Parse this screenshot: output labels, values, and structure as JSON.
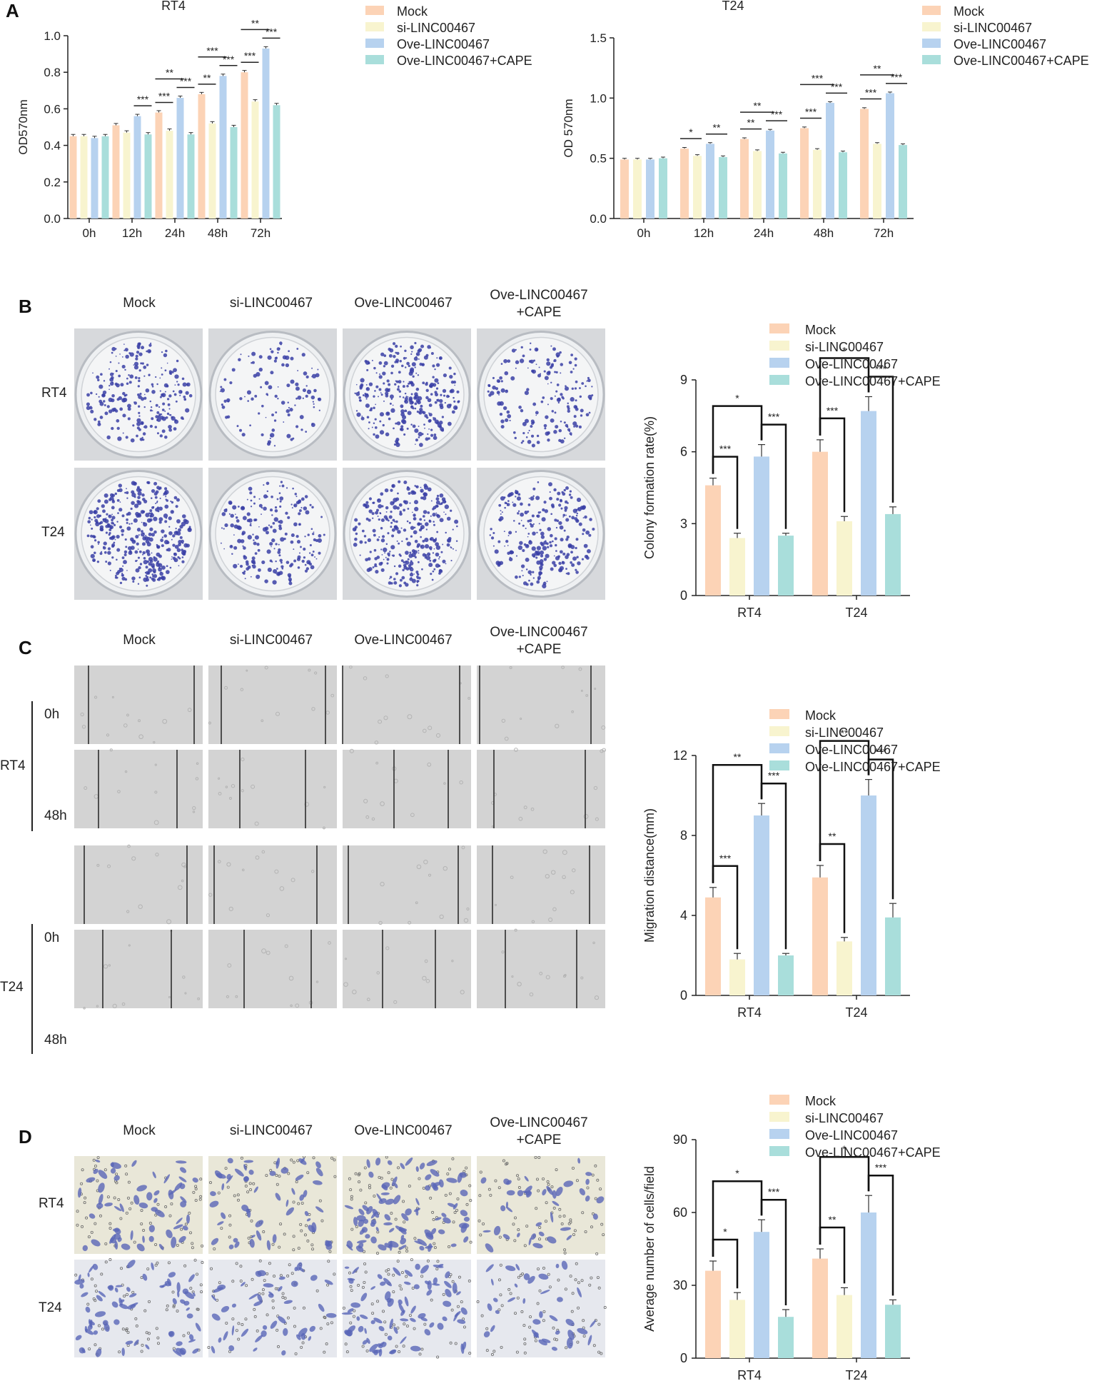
{
  "panels": {
    "a": {
      "letter": "A"
    },
    "b": {
      "letter": "B",
      "col_headers": [
        "Mock",
        "si-LINC00467",
        "Ove-LINC00467",
        "Ove-LINC00467\n+CAPE"
      ],
      "row_labels": [
        "RT4",
        "T24"
      ],
      "description": "Colony formation dishes stained with crystal violet"
    },
    "c": {
      "letter": "C",
      "col_headers": [
        "Mock",
        "si-LINC00467",
        "Ove-LINC00467",
        "Ove-LINC00467\n+CAPE"
      ],
      "row_groups": [
        {
          "label": "RT4",
          "times": [
            "0h",
            "48h"
          ]
        },
        {
          "label": "T24",
          "times": [
            "0h",
            "48h"
          ]
        }
      ],
      "description": "Wound healing micrographs"
    },
    "d": {
      "letter": "D",
      "col_headers": [
        "Mock",
        "si-LINC00467",
        "Ove-LINC00467",
        "Ove-LINC00467\n+CAPE"
      ],
      "row_labels": [
        "RT4",
        "T24"
      ],
      "description": "Transwell migration micrographs"
    }
  },
  "colors": {
    "Mock": "#fcd3b6",
    "si-LINC00467": "#f8f4cf",
    "Ove-LINC00467": "#b7d2ef",
    "Ove-LINC00467+CAPE": "#a9dedb",
    "colony": "#3a3fa6",
    "cells": "#5a66b8"
  },
  "chart_data": [
    {
      "id": "A_RT4",
      "type": "bar",
      "title": "RT4",
      "ylabel": "OD570nm",
      "xlabel": "",
      "categories": [
        "0h",
        "12h",
        "24h",
        "48h",
        "72h"
      ],
      "ylim": [
        0,
        1.0
      ],
      "yticks": [
        "0.0",
        "0.2",
        "0.4",
        "0.6",
        "0.8",
        "1.0"
      ],
      "series": [
        {
          "name": "Mock",
          "values": [
            0.45,
            0.51,
            0.58,
            0.68,
            0.8
          ],
          "errors": [
            0.01,
            0.01,
            0.01,
            0.01,
            0.01
          ]
        },
        {
          "name": "si-LINC00467",
          "values": [
            0.45,
            0.47,
            0.48,
            0.52,
            0.64
          ],
          "errors": [
            0.01,
            0.01,
            0.01,
            0.01,
            0.01
          ]
        },
        {
          "name": "Ove-LINC00467",
          "values": [
            0.44,
            0.56,
            0.66,
            0.78,
            0.93
          ],
          "errors": [
            0.01,
            0.01,
            0.01,
            0.01,
            0.01
          ]
        },
        {
          "name": "Ove-LINC00467+CAPE",
          "values": [
            0.45,
            0.46,
            0.46,
            0.5,
            0.62
          ],
          "errors": [
            0.01,
            0.01,
            0.01,
            0.01,
            0.01
          ]
        }
      ],
      "legend": "top-right",
      "significance": [
        {
          "cat": 1,
          "from": 2,
          "to": 3,
          "label": "***"
        },
        {
          "cat": 2,
          "from": 0,
          "to": 1,
          "label": "***"
        },
        {
          "cat": 2,
          "from": 0,
          "to": 2,
          "label": "**"
        },
        {
          "cat": 2,
          "from": 2,
          "to": 3,
          "label": "***"
        },
        {
          "cat": 3,
          "from": 0,
          "to": 1,
          "label": "**"
        },
        {
          "cat": 3,
          "from": 0,
          "to": 2,
          "label": "***"
        },
        {
          "cat": 3,
          "from": 2,
          "to": 3,
          "label": "***"
        },
        {
          "cat": 4,
          "from": 0,
          "to": 1,
          "label": "***"
        },
        {
          "cat": 4,
          "from": 0,
          "to": 2,
          "label": "**"
        },
        {
          "cat": 4,
          "from": 2,
          "to": 3,
          "label": "***"
        }
      ]
    },
    {
      "id": "A_T24",
      "type": "bar",
      "title": "T24",
      "ylabel": "OD 570nm",
      "xlabel": "",
      "categories": [
        "0h",
        "12h",
        "24h",
        "48h",
        "72h"
      ],
      "ylim": [
        0,
        1.5
      ],
      "yticks": [
        "0.0",
        "0.5",
        "1.0",
        "1.5"
      ],
      "series": [
        {
          "name": "Mock",
          "values": [
            0.49,
            0.58,
            0.66,
            0.75,
            0.91
          ],
          "errors": [
            0.01,
            0.01,
            0.01,
            0.01,
            0.01
          ]
        },
        {
          "name": "si-LINC00467",
          "values": [
            0.49,
            0.52,
            0.56,
            0.57,
            0.62
          ],
          "errors": [
            0.01,
            0.01,
            0.01,
            0.01,
            0.01
          ]
        },
        {
          "name": "Ove-LINC00467",
          "values": [
            0.49,
            0.62,
            0.73,
            0.96,
            1.04
          ],
          "errors": [
            0.01,
            0.01,
            0.01,
            0.01,
            0.01
          ]
        },
        {
          "name": "Ove-LINC00467+CAPE",
          "values": [
            0.5,
            0.51,
            0.54,
            0.55,
            0.61
          ],
          "errors": [
            0.01,
            0.01,
            0.01,
            0.01,
            0.01
          ]
        }
      ],
      "legend": "top-right",
      "significance": [
        {
          "cat": 1,
          "from": 0,
          "to": 1,
          "label": "*"
        },
        {
          "cat": 1,
          "from": 2,
          "to": 3,
          "label": "**"
        },
        {
          "cat": 2,
          "from": 0,
          "to": 1,
          "label": "**"
        },
        {
          "cat": 2,
          "from": 0,
          "to": 2,
          "label": "**"
        },
        {
          "cat": 2,
          "from": 2,
          "to": 3,
          "label": "***"
        },
        {
          "cat": 3,
          "from": 0,
          "to": 1,
          "label": "***"
        },
        {
          "cat": 3,
          "from": 0,
          "to": 2,
          "label": "***"
        },
        {
          "cat": 3,
          "from": 2,
          "to": 3,
          "label": "***"
        },
        {
          "cat": 4,
          "from": 0,
          "to": 1,
          "label": "***"
        },
        {
          "cat": 4,
          "from": 0,
          "to": 2,
          "label": "**"
        },
        {
          "cat": 4,
          "from": 2,
          "to": 3,
          "label": "***"
        }
      ]
    },
    {
      "id": "B_colony",
      "type": "bar",
      "title": "",
      "ylabel": "Colony formation rate(%)",
      "xlabel": "",
      "categories": [
        "RT4",
        "T24"
      ],
      "ylim": [
        0,
        9
      ],
      "yticks": [
        "0",
        "3",
        "6",
        "9"
      ],
      "series": [
        {
          "name": "Mock",
          "values": [
            4.6,
            6.0
          ],
          "errors": [
            0.3,
            0.5
          ]
        },
        {
          "name": "si-LINC00467",
          "values": [
            2.4,
            3.1
          ],
          "errors": [
            0.2,
            0.2
          ]
        },
        {
          "name": "Ove-LINC00467",
          "values": [
            5.8,
            7.7
          ],
          "errors": [
            0.5,
            0.6
          ]
        },
        {
          "name": "Ove-LINC00467+CAPE",
          "values": [
            2.5,
            3.4
          ],
          "errors": [
            0.1,
            0.3
          ]
        }
      ],
      "legend": "top-right",
      "brackets": [
        {
          "cat": 0,
          "from": 0,
          "to": 1,
          "label": "***",
          "level": 1
        },
        {
          "cat": 0,
          "from": 0,
          "to": 2,
          "label": "*",
          "level": 3
        },
        {
          "cat": 0,
          "from": 2,
          "to": 3,
          "label": "***",
          "level": 2
        },
        {
          "cat": 1,
          "from": 0,
          "to": 1,
          "label": "***",
          "level": 1
        },
        {
          "cat": 1,
          "from": 0,
          "to": 2,
          "label": "*",
          "level": 3
        },
        {
          "cat": 1,
          "from": 2,
          "to": 3,
          "label": "***",
          "level": 2
        }
      ]
    },
    {
      "id": "C_migration",
      "type": "bar",
      "title": "",
      "ylabel": "Migration distance(mm)",
      "xlabel": "",
      "categories": [
        "RT4",
        "T24"
      ],
      "ylim": [
        0,
        12
      ],
      "yticks": [
        "0",
        "4",
        "8",
        "12"
      ],
      "series": [
        {
          "name": "Mock",
          "values": [
            4.9,
            5.9
          ],
          "errors": [
            0.5,
            0.6
          ]
        },
        {
          "name": "si-LINC00467",
          "values": [
            1.8,
            2.7
          ],
          "errors": [
            0.3,
            0.2
          ]
        },
        {
          "name": "Ove-LINC00467",
          "values": [
            9.0,
            10.0
          ],
          "errors": [
            0.6,
            0.8
          ]
        },
        {
          "name": "Ove-LINC00467+CAPE",
          "values": [
            2.0,
            3.9
          ],
          "errors": [
            0.1,
            0.7
          ]
        }
      ],
      "legend": "top-right",
      "brackets": [
        {
          "cat": 0,
          "from": 0,
          "to": 1,
          "label": "***",
          "level": 1
        },
        {
          "cat": 0,
          "from": 0,
          "to": 2,
          "label": "**",
          "level": 3
        },
        {
          "cat": 0,
          "from": 2,
          "to": 3,
          "label": "***",
          "level": 2
        },
        {
          "cat": 1,
          "from": 0,
          "to": 1,
          "label": "**",
          "level": 1
        },
        {
          "cat": 1,
          "from": 0,
          "to": 2,
          "label": "**",
          "level": 3
        },
        {
          "cat": 1,
          "from": 2,
          "to": 3,
          "label": "***",
          "level": 2
        }
      ]
    },
    {
      "id": "D_transwell",
      "type": "bar",
      "title": "",
      "ylabel": "Average number of cells/field",
      "xlabel": "",
      "categories": [
        "RT4",
        "T24"
      ],
      "ylim": [
        0,
        90
      ],
      "yticks": [
        "0",
        "30",
        "60",
        "90"
      ],
      "series": [
        {
          "name": "Mock",
          "values": [
            36,
            41
          ],
          "errors": [
            4,
            4
          ]
        },
        {
          "name": "si-LINC00467",
          "values": [
            24,
            26
          ],
          "errors": [
            3,
            3
          ]
        },
        {
          "name": "Ove-LINC00467",
          "values": [
            52,
            60
          ],
          "errors": [
            5,
            7
          ]
        },
        {
          "name": "Ove-LINC00467+CAPE",
          "values": [
            17,
            22
          ],
          "errors": [
            3,
            2
          ]
        }
      ],
      "legend": "top-right",
      "brackets": [
        {
          "cat": 0,
          "from": 0,
          "to": 1,
          "label": "*",
          "level": 1
        },
        {
          "cat": 0,
          "from": 0,
          "to": 2,
          "label": "*",
          "level": 3
        },
        {
          "cat": 0,
          "from": 2,
          "to": 3,
          "label": "***",
          "level": 2
        },
        {
          "cat": 1,
          "from": 0,
          "to": 1,
          "label": "**",
          "level": 1
        },
        {
          "cat": 1,
          "from": 0,
          "to": 2,
          "label": "*",
          "level": 3
        },
        {
          "cat": 1,
          "from": 2,
          "to": 3,
          "label": "***",
          "level": 2
        }
      ]
    }
  ]
}
